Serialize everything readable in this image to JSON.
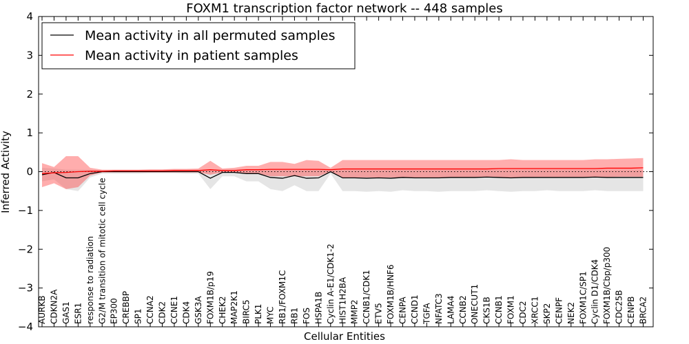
{
  "chart_data": {
    "type": "line",
    "title": "FOXM1 transcription factor network -- 448 samples",
    "xlabel": "Cellular Entities",
    "ylabel": "Inferred Activity",
    "ylim": [
      -4,
      4
    ],
    "yticks": [
      "−4",
      "−3",
      "−2",
      "−1",
      "0",
      "1",
      "2",
      "3",
      "4"
    ],
    "legend": {
      "position": "top-left",
      "entries": [
        {
          "name": "Mean activity in all permuted samples",
          "color": "#000000"
        },
        {
          "name": "Mean activity in patient samples",
          "color": "#ff0000"
        }
      ]
    },
    "categories": [
      "AURKB",
      "CDKN2A",
      "GAS1",
      "ESR1",
      "response to radiation",
      "G2/M transition of mitotic cell cycle",
      "EP300",
      "CREBBP",
      "SP1",
      "CCNA2",
      "CDK2",
      "CCNE1",
      "CDK4",
      "GSK3A",
      "FOXM1B/p19",
      "CHEK2",
      "MAP2K1",
      "BIRC5",
      "PLK1",
      "MYC",
      "RB1/FOXM1C",
      "RB1",
      "FOS",
      "HSPA1B",
      "Cyclin A-E1/CDK1-2",
      "HIST1H2BA",
      "MMP2",
      "CCNB1/CDK1",
      "ETV5",
      "FOXM1B/HNF6",
      "CENPA",
      "CCND1",
      "TGFA",
      "NFATC3",
      "LAMA4",
      "CCNB2",
      "ONECUT1",
      "CKS1B",
      "CCNB1",
      "FOXM1",
      "CDC2",
      "XRCC1",
      "SKP2",
      "CENPF",
      "NEK2",
      "FOXM1C/SP1",
      "Cyclin D1/CDK4",
      "FOXM1B/Cbp/p300",
      "CDC25B",
      "CENPB",
      "BRCA2"
    ],
    "series": [
      {
        "name": "Mean activity in all permuted samples",
        "color": "#000000",
        "values": [
          -0.08,
          -0.02,
          -0.16,
          -0.16,
          -0.05,
          0.0,
          0.0,
          0.0,
          0.0,
          0.0,
          0.0,
          0.0,
          0.0,
          0.0,
          -0.17,
          -0.02,
          -0.02,
          -0.05,
          -0.05,
          -0.15,
          -0.17,
          -0.1,
          -0.17,
          -0.16,
          0.0,
          -0.16,
          -0.16,
          -0.17,
          -0.16,
          -0.17,
          -0.15,
          -0.16,
          -0.16,
          -0.16,
          -0.15,
          -0.15,
          -0.15,
          -0.14,
          -0.15,
          -0.16,
          -0.15,
          -0.15,
          -0.15,
          -0.15,
          -0.15,
          -0.15,
          -0.14,
          -0.15,
          -0.15,
          -0.15,
          -0.15
        ],
        "band_low": [
          -0.25,
          -0.2,
          -0.45,
          -0.5,
          -0.15,
          -0.05,
          -0.05,
          -0.05,
          -0.05,
          -0.04,
          -0.04,
          -0.04,
          -0.05,
          -0.05,
          -0.45,
          -0.12,
          -0.12,
          -0.25,
          -0.25,
          -0.45,
          -0.5,
          -0.35,
          -0.5,
          -0.5,
          -0.05,
          -0.5,
          -0.5,
          -0.52,
          -0.5,
          -0.52,
          -0.48,
          -0.5,
          -0.5,
          -0.52,
          -0.5,
          -0.5,
          -0.5,
          -0.48,
          -0.5,
          -0.52,
          -0.5,
          -0.5,
          -0.48,
          -0.5,
          -0.5,
          -0.5,
          -0.48,
          -0.5,
          -0.5,
          -0.5,
          -0.5
        ],
        "band_high": [
          0.1,
          0.08,
          0.05,
          0.05,
          0.05,
          0.03,
          0.03,
          0.03,
          0.03,
          0.03,
          0.03,
          0.03,
          0.03,
          0.03,
          0.05,
          0.05,
          0.05,
          0.05,
          0.05,
          0.05,
          0.05,
          0.05,
          0.05,
          0.05,
          0.03,
          0.05,
          0.05,
          0.05,
          0.05,
          0.05,
          0.05,
          0.05,
          0.05,
          0.05,
          0.05,
          0.05,
          0.05,
          0.05,
          0.05,
          0.05,
          0.05,
          0.05,
          0.05,
          0.05,
          0.05,
          0.05,
          0.05,
          0.05,
          0.05,
          0.05,
          0.05
        ]
      },
      {
        "name": "Mean activity in patient samples",
        "color": "#ff0000",
        "values": [
          -0.05,
          -0.03,
          -0.02,
          0.0,
          0.01,
          0.01,
          0.02,
          0.02,
          0.02,
          0.02,
          0.02,
          0.03,
          0.03,
          0.03,
          0.05,
          0.03,
          0.03,
          0.05,
          0.05,
          0.06,
          0.06,
          0.06,
          0.06,
          0.06,
          0.05,
          0.07,
          0.07,
          0.07,
          0.07,
          0.07,
          0.07,
          0.07,
          0.07,
          0.07,
          0.07,
          0.07,
          0.07,
          0.07,
          0.08,
          0.08,
          0.08,
          0.08,
          0.08,
          0.08,
          0.08,
          0.08,
          0.08,
          0.09,
          0.09,
          0.09,
          0.1
        ],
        "band_low": [
          -0.4,
          -0.3,
          -0.45,
          -0.4,
          -0.1,
          -0.02,
          -0.02,
          -0.02,
          -0.02,
          -0.02,
          -0.02,
          -0.02,
          -0.02,
          -0.02,
          -0.08,
          -0.02,
          -0.02,
          -0.05,
          -0.05,
          -0.12,
          -0.12,
          -0.12,
          -0.12,
          -0.12,
          0.0,
          -0.15,
          -0.15,
          -0.15,
          -0.15,
          -0.15,
          -0.15,
          -0.15,
          -0.15,
          -0.15,
          -0.15,
          -0.15,
          -0.15,
          -0.15,
          -0.15,
          -0.15,
          -0.15,
          -0.14,
          -0.14,
          -0.14,
          -0.14,
          -0.14,
          -0.14,
          -0.14,
          -0.13,
          -0.13,
          -0.13
        ],
        "band_high": [
          0.22,
          0.12,
          0.4,
          0.4,
          0.1,
          0.05,
          0.05,
          0.05,
          0.05,
          0.06,
          0.06,
          0.07,
          0.07,
          0.08,
          0.28,
          0.08,
          0.1,
          0.15,
          0.15,
          0.25,
          0.25,
          0.2,
          0.3,
          0.28,
          0.1,
          0.3,
          0.3,
          0.3,
          0.3,
          0.3,
          0.3,
          0.3,
          0.3,
          0.3,
          0.3,
          0.3,
          0.3,
          0.3,
          0.3,
          0.32,
          0.3,
          0.3,
          0.3,
          0.3,
          0.3,
          0.3,
          0.32,
          0.32,
          0.33,
          0.34,
          0.35
        ]
      }
    ]
  }
}
